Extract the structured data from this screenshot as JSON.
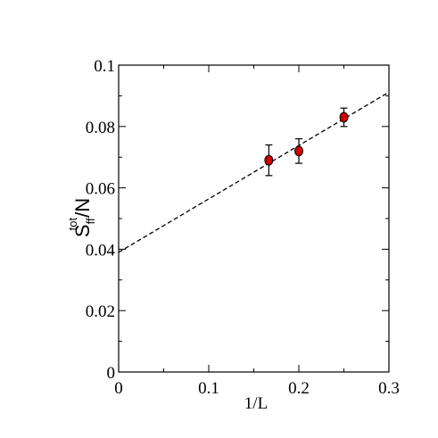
{
  "chart_data": {
    "type": "scatter",
    "xlabel": "1/L",
    "ylabel": {
      "base": "S",
      "subscript": "ff",
      "superscript": "tot",
      "suffix": "/N"
    },
    "xlim": [
      0,
      0.3
    ],
    "ylim": [
      0,
      0.1
    ],
    "x_ticks": [
      "0",
      "0.1",
      "0.2",
      "0.3"
    ],
    "y_ticks": [
      "0",
      "0.02",
      "0.04",
      "0.06",
      "0.08",
      "0.1"
    ],
    "series": [
      {
        "points": [
          {
            "x": 0.1667,
            "y": 0.069,
            "err": 0.005
          },
          {
            "x": 0.2,
            "y": 0.072,
            "err": 0.004
          },
          {
            "x": 0.25,
            "y": 0.083,
            "err": 0.003
          }
        ],
        "marker_color": "#cc0000",
        "edge_color": "#000000"
      }
    ],
    "fit_line": {
      "style": "dashed",
      "intercept": 0.039,
      "slope": 0.174,
      "x_range": [
        0,
        0.3
      ]
    },
    "grid": false,
    "legend": "none"
  }
}
